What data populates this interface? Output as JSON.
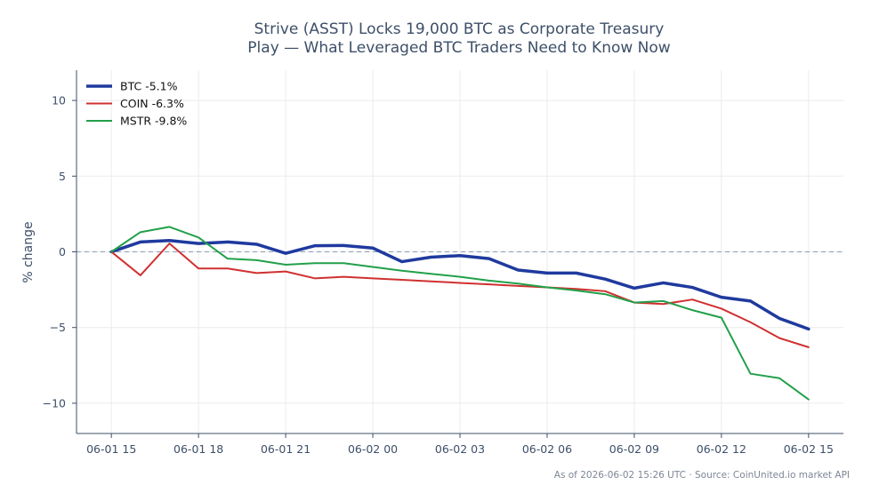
{
  "chart_data": {
    "type": "line",
    "title_lines": [
      "Strive (ASST) Locks 19,000 BTC as Corporate Treasury",
      "Play — What Leveraged BTC Traders Need to Know Now"
    ],
    "ylabel": "% change",
    "xlabel": "",
    "ylim": [
      -12,
      12
    ],
    "xlim": [
      -1.2,
      25.2
    ],
    "yticks": [
      10,
      5,
      0,
      -5,
      -10
    ],
    "ytick_labels": [
      "10",
      "5",
      "0",
      "−5",
      "−10"
    ],
    "xticks": [
      0,
      3,
      6,
      9,
      12,
      15,
      18,
      21,
      24
    ],
    "xtick_labels": [
      "06-01 15",
      "06-01 18",
      "06-01 21",
      "06-02 00",
      "06-02 03",
      "06-02 06",
      "06-02 09",
      "06-02 12",
      "06-02 15"
    ],
    "grid": true,
    "zero_line": true,
    "legend_position": "top-left",
    "series": [
      {
        "name": "BTC -5.1%",
        "color": "#1f3a9e",
        "width": 3.5,
        "x": [
          0,
          1,
          2,
          3,
          4,
          5,
          6,
          7,
          8,
          9,
          10,
          11,
          12,
          13,
          14,
          15,
          16,
          17,
          18,
          19,
          20,
          21,
          22,
          23,
          24
        ],
        "values": [
          0.0,
          0.65,
          0.75,
          0.55,
          0.65,
          0.5,
          -0.1,
          0.4,
          0.42,
          0.25,
          -0.65,
          -0.35,
          -0.25,
          -0.45,
          -1.2,
          -1.4,
          -1.4,
          -1.8,
          -2.4,
          -2.05,
          -2.35,
          -3.0,
          -3.25,
          -4.4,
          -5.1
        ]
      },
      {
        "name": "COIN -6.3%",
        "color": "#d03030",
        "width": 2,
        "x": [
          0,
          1,
          2,
          3,
          4,
          5,
          6,
          7,
          8,
          9,
          10,
          11,
          12,
          13,
          14,
          15,
          16,
          17,
          18,
          19,
          20,
          21,
          22,
          23,
          24
        ],
        "values": [
          0.0,
          -1.55,
          0.55,
          -1.1,
          -1.1,
          -1.4,
          -1.3,
          -1.75,
          -1.65,
          -1.75,
          -1.85,
          -1.95,
          -2.05,
          -2.15,
          -2.25,
          -2.35,
          -2.45,
          -2.6,
          -3.35,
          -3.45,
          -3.15,
          -3.75,
          -4.65,
          -5.7,
          -6.3
        ]
      },
      {
        "name": "MSTR -9.8%",
        "color": "#22a04a",
        "width": 2,
        "x": [
          0,
          1,
          2,
          3,
          4,
          5,
          6,
          7,
          8,
          9,
          10,
          11,
          12,
          13,
          14,
          15,
          16,
          17,
          18,
          19,
          20,
          21,
          22,
          23,
          24
        ],
        "values": [
          0.0,
          1.3,
          1.65,
          0.95,
          -0.45,
          -0.55,
          -0.85,
          -0.75,
          -0.75,
          -1.0,
          -1.25,
          -1.45,
          -1.65,
          -1.9,
          -2.1,
          -2.35,
          -2.55,
          -2.8,
          -3.35,
          -3.25,
          -3.85,
          -4.35,
          -8.05,
          -8.35,
          -9.75
        ]
      }
    ],
    "footer": "As of 2026-06-02 15:26 UTC · Source: CoinUnited.io market API"
  }
}
